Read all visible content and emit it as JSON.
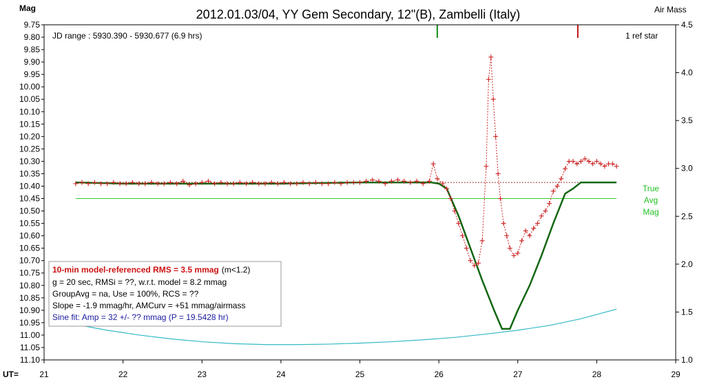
{
  "chart_data": {
    "type": "scatter",
    "title": "2012.01.03/04, YY Gem Secondary, 12\"(B), Zambelli (Italy)",
    "ylabel": "Mag",
    "y2label": "Air Mass",
    "xlabel": "UT=",
    "xlim": [
      21,
      29
    ],
    "ylim": [
      9.75,
      11.1
    ],
    "y_inverted": true,
    "y2lim": [
      1.0,
      4.5
    ],
    "x_ticks": [
      "21",
      "22",
      "23",
      "24",
      "25",
      "26",
      "27",
      "28",
      "29"
    ],
    "y_ticks": [
      "9.75",
      "9.80",
      "9.85",
      "9.90",
      "9.95",
      "10.00",
      "10.05",
      "10.10",
      "10.15",
      "10.20",
      "10.25",
      "10.30",
      "10.35",
      "10.40",
      "10.45",
      "10.50",
      "10.55",
      "10.60",
      "10.65",
      "10.70",
      "10.75",
      "10.80",
      "10.85",
      "10.90",
      "10.95",
      "11.00",
      "11.05",
      "11.10"
    ],
    "y2_ticks": [
      "1.0",
      "1.5",
      "2.0",
      "2.5",
      "3.0",
      "3.5",
      "4.0",
      "4.5"
    ],
    "annotations": {
      "jd_range": "JD range : 5930.390 - 5930.677 (6.9 hrs)",
      "ref_stars": "1 ref star",
      "true_avg": [
        "True",
        "Avg",
        "Mag"
      ]
    },
    "info_box": {
      "rms_bold": "10-min model-referenced RMS = 3.5 mmag",
      "rms_note": "(m<1.2)",
      "line2": "g = 20 sec, RMSi = ??, w.r.t. model = 8.2 mmag",
      "line3": "GroupAvg = na, Use = 100%, RCS = ??",
      "line4": "Slope = -1.9 mmag/hr, AMCurv = +51 mmag/airmass",
      "line5": "Sine fit: Amp = 32 +/- ?? mmag (P = 19.5428 hr)"
    },
    "true_avg_mag": 10.45,
    "reference_level": 10.385,
    "markers": [
      {
        "x": 25.98,
        "color": "#118811"
      },
      {
        "x": 27.76,
        "color": "#bb1111"
      }
    ],
    "series": [
      {
        "style": "observations",
        "color": "#cc2222",
        "x": [
          21.4,
          21.48,
          21.56,
          21.64,
          21.72,
          21.8,
          21.88,
          21.96,
          22.04,
          22.12,
          22.2,
          22.28,
          22.36,
          22.44,
          22.52,
          22.6,
          22.68,
          22.76,
          22.84,
          22.92,
          23.0,
          23.08,
          23.16,
          23.24,
          23.32,
          23.4,
          23.48,
          23.56,
          23.64,
          23.72,
          23.8,
          23.88,
          23.96,
          24.04,
          24.12,
          24.2,
          24.28,
          24.36,
          24.44,
          24.52,
          24.6,
          24.68,
          24.76,
          24.84,
          24.92,
          25.0,
          25.08,
          25.16,
          25.24,
          25.32,
          25.4,
          25.48,
          25.56,
          25.64,
          25.72,
          25.8,
          25.88,
          25.93,
          25.98,
          26.05,
          26.1,
          26.15,
          26.2,
          26.25,
          26.3,
          26.35,
          26.4,
          26.45,
          26.5,
          26.55,
          26.6,
          26.63,
          26.66,
          26.69,
          26.72,
          26.75,
          26.78,
          26.82,
          26.86,
          26.9,
          26.95,
          27.0,
          27.05,
          27.1,
          27.15,
          27.2,
          27.25,
          27.3,
          27.35,
          27.4,
          27.45,
          27.5,
          27.55,
          27.6,
          27.65,
          27.7,
          27.75,
          27.8,
          27.85,
          27.9,
          27.95,
          28.0,
          28.05,
          28.1,
          28.15,
          28.2,
          28.25
        ],
        "y": [
          10.39,
          10.385,
          10.39,
          10.385,
          10.39,
          10.39,
          10.385,
          10.39,
          10.39,
          10.385,
          10.39,
          10.39,
          10.385,
          10.39,
          10.39,
          10.385,
          10.39,
          10.38,
          10.395,
          10.39,
          10.385,
          10.38,
          10.39,
          10.385,
          10.39,
          10.39,
          10.385,
          10.39,
          10.385,
          10.39,
          10.39,
          10.385,
          10.39,
          10.385,
          10.39,
          10.39,
          10.385,
          10.39,
          10.385,
          10.39,
          10.39,
          10.385,
          10.39,
          10.385,
          10.385,
          10.385,
          10.38,
          10.375,
          10.38,
          10.39,
          10.38,
          10.375,
          10.38,
          10.385,
          10.38,
          10.39,
          10.38,
          10.31,
          10.37,
          10.39,
          10.41,
          10.45,
          10.5,
          10.55,
          10.6,
          10.65,
          10.7,
          10.72,
          10.71,
          10.62,
          10.32,
          9.97,
          9.88,
          10.05,
          10.2,
          10.35,
          10.45,
          10.55,
          10.6,
          10.65,
          10.68,
          10.67,
          10.62,
          10.58,
          10.6,
          10.57,
          10.55,
          10.52,
          10.5,
          10.47,
          10.42,
          10.4,
          10.37,
          10.33,
          10.3,
          10.3,
          10.31,
          10.3,
          10.29,
          10.3,
          10.31,
          10.3,
          10.31,
          10.32,
          10.31,
          10.31,
          10.32
        ]
      },
      {
        "style": "model",
        "color": "#116611",
        "x": [
          21.4,
          22.0,
          23.0,
          24.0,
          25.0,
          25.9,
          26.0,
          26.1,
          26.25,
          26.4,
          26.55,
          26.7,
          26.8,
          26.9,
          27.0,
          27.15,
          27.3,
          27.45,
          27.6,
          27.7,
          27.8,
          28.25
        ],
        "y": [
          10.385,
          10.39,
          10.39,
          10.39,
          10.385,
          10.385,
          10.39,
          10.41,
          10.52,
          10.65,
          10.78,
          10.9,
          10.975,
          10.975,
          10.9,
          10.8,
          10.68,
          10.55,
          10.43,
          10.41,
          10.385,
          10.385
        ]
      },
      {
        "style": "airmass",
        "color": "#33b9c6",
        "axis": "y2",
        "x": [
          21.4,
          21.8,
          22.2,
          22.6,
          23.0,
          23.4,
          23.8,
          24.2,
          24.6,
          25.0,
          25.4,
          25.8,
          26.2,
          26.6,
          27.0,
          27.4,
          27.8,
          28.25
        ],
        "y": [
          1.37,
          1.31,
          1.26,
          1.22,
          1.19,
          1.17,
          1.16,
          1.16,
          1.165,
          1.175,
          1.19,
          1.21,
          1.235,
          1.27,
          1.31,
          1.36,
          1.43,
          1.53
        ]
      }
    ]
  }
}
